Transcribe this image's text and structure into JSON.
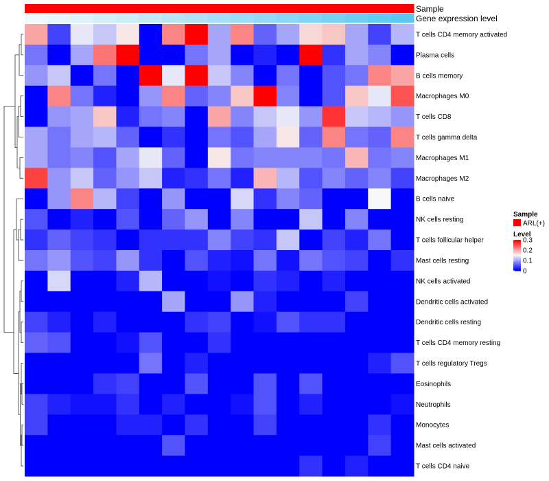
{
  "chart_data": {
    "type": "heatmap",
    "annotations": {
      "sample_label": "Sample",
      "expression_label": "Gene expression level",
      "sample_color": "#ff0000"
    },
    "rows": [
      "T cells CD4 memory activated",
      "Plasma cells",
      "B cells memory",
      "Macrophages M0",
      "T cells CD8",
      "T cells gamma delta",
      "Macrophages M1",
      "Macrophages M2",
      "B cells naive",
      "NK cells resting",
      "T cells follicular helper",
      "Mast cells resting",
      "NK cells activated",
      "Dendritic cells activated",
      "Dendritic cells resting",
      "T cells CD4 memory resting",
      "T cells regulatory  Tregs",
      "Eosinophils",
      "Neutrophils",
      "Monocytes",
      "Mast cells activated",
      "T cells CD4 naive"
    ],
    "values": [
      [
        0.2,
        0.04,
        0.14,
        0.12,
        0.16,
        0.0,
        0.22,
        0.3,
        0.1,
        0.22,
        0.06,
        0.1,
        0.17,
        0.18,
        0.1,
        0.04,
        0.11
      ],
      [
        0.07,
        0.0,
        0.1,
        0.23,
        0.3,
        0.0,
        0.0,
        0.07,
        0.1,
        0.0,
        0.02,
        0.0,
        0.3,
        0.03,
        0.1,
        0.08,
        0.0
      ],
      [
        0.09,
        0.12,
        0.0,
        0.07,
        0.0,
        0.3,
        0.14,
        0.3,
        0.12,
        0.08,
        0.0,
        0.07,
        0.0,
        0.05,
        0.07,
        0.22,
        0.2
      ],
      [
        0.0,
        0.22,
        0.07,
        0.02,
        0.0,
        0.09,
        0.22,
        0.06,
        0.08,
        0.18,
        0.3,
        0.08,
        0.0,
        0.05,
        0.18,
        0.14,
        0.25
      ],
      [
        0.0,
        0.09,
        0.1,
        0.18,
        0.02,
        0.07,
        0.08,
        0.0,
        0.2,
        0.08,
        0.12,
        0.14,
        0.09,
        0.27,
        0.12,
        0.11,
        0.09
      ],
      [
        0.1,
        0.07,
        0.1,
        0.11,
        0.06,
        0.0,
        0.03,
        0.0,
        0.07,
        0.05,
        0.1,
        0.16,
        0.06,
        0.22,
        0.07,
        0.06,
        0.22
      ],
      [
        0.1,
        0.07,
        0.08,
        0.05,
        0.1,
        0.14,
        0.06,
        0.0,
        0.16,
        0.07,
        0.08,
        0.08,
        0.08,
        0.07,
        0.19,
        0.07,
        0.08
      ],
      [
        0.26,
        0.09,
        0.12,
        0.06,
        0.09,
        0.12,
        0.02,
        0.03,
        0.07,
        0.02,
        0.19,
        0.11,
        0.05,
        0.08,
        0.06,
        0.08,
        0.04
      ],
      [
        0.0,
        0.09,
        0.22,
        0.11,
        0.04,
        0.0,
        0.09,
        0.0,
        0.0,
        0.13,
        0.03,
        0.08,
        0.06,
        0.0,
        0.0,
        0.15,
        0.0
      ],
      [
        0.05,
        0.0,
        0.02,
        0.0,
        0.05,
        0.0,
        0.06,
        0.09,
        0.0,
        0.08,
        0.0,
        0.0,
        0.12,
        0.0,
        0.08,
        0.0,
        0.0
      ],
      [
        0.03,
        0.06,
        0.04,
        0.03,
        0.0,
        0.03,
        0.03,
        0.03,
        0.08,
        0.04,
        0.03,
        0.12,
        0.0,
        0.04,
        0.02,
        0.07,
        0.0
      ],
      [
        0.07,
        0.09,
        0.05,
        0.04,
        0.09,
        0.03,
        0.0,
        0.05,
        0.02,
        0.01,
        0.07,
        0.01,
        0.07,
        0.05,
        0.04,
        0.0,
        0.03
      ],
      [
        0.0,
        0.13,
        0.0,
        0.0,
        0.02,
        0.11,
        0.0,
        0.0,
        0.01,
        0.0,
        0.03,
        0.02,
        0.0,
        0.02,
        0.0,
        0.0,
        0.0
      ],
      [
        0.0,
        0.0,
        0.0,
        0.0,
        0.0,
        0.0,
        0.1,
        0.0,
        0.0,
        0.09,
        0.02,
        0.0,
        0.0,
        0.0,
        0.04,
        0.0,
        0.0
      ],
      [
        0.04,
        0.02,
        0.0,
        0.02,
        0.0,
        0.0,
        0.0,
        0.03,
        0.04,
        0.0,
        0.01,
        0.05,
        0.03,
        0.03,
        0.0,
        0.0,
        0.0
      ],
      [
        0.06,
        0.05,
        0.0,
        0.0,
        0.01,
        0.05,
        0.0,
        0.0,
        0.03,
        0.0,
        0.0,
        0.0,
        0.0,
        0.0,
        0.0,
        0.0,
        0.0
      ],
      [
        0.0,
        0.0,
        0.0,
        0.0,
        0.0,
        0.07,
        0.0,
        0.02,
        0.0,
        0.0,
        0.0,
        0.0,
        0.0,
        0.0,
        0.0,
        0.02,
        0.05
      ],
      [
        0.0,
        0.0,
        0.0,
        0.03,
        0.04,
        0.0,
        0.0,
        0.05,
        0.0,
        0.0,
        0.05,
        0.0,
        0.05,
        0.0,
        0.0,
        0.0,
        0.0
      ],
      [
        0.04,
        0.02,
        0.01,
        0.01,
        0.03,
        0.0,
        0.02,
        0.0,
        0.0,
        0.01,
        0.05,
        0.0,
        0.02,
        0.0,
        0.0,
        0.0,
        0.01
      ],
      [
        0.04,
        0.0,
        0.0,
        0.0,
        0.02,
        0.02,
        0.0,
        0.03,
        0.0,
        0.0,
        0.04,
        0.0,
        0.0,
        0.0,
        0.0,
        0.03,
        0.0
      ],
      [
        0.0,
        0.0,
        0.0,
        0.0,
        0.0,
        0.0,
        0.05,
        0.0,
        0.0,
        0.0,
        0.0,
        0.0,
        0.0,
        0.0,
        0.0,
        0.04,
        0.0
      ],
      [
        0.0,
        0.0,
        0.0,
        0.0,
        0.0,
        0.0,
        0.0,
        0.0,
        0.0,
        0.0,
        0.0,
        0.0,
        0.03,
        0.0,
        0.02,
        0.0,
        0.0
      ]
    ],
    "expression_gradient": [
      0.0,
      0.02,
      0.04,
      0.06,
      0.08,
      0.1,
      0.12,
      0.14,
      0.16,
      0.18,
      0.2,
      0.22,
      0.24,
      0.26,
      0.28,
      0.3,
      0.32
    ],
    "color_scale": {
      "min": 0.0,
      "mid": 0.15,
      "max": 0.3,
      "low_color": "#0000ff",
      "mid_color": "#f8f8f8",
      "high_color": "#ff0000"
    },
    "legend": {
      "sample_title": "Sample",
      "sample_entry": "ARL(+)",
      "level_title": "Level",
      "ticks": [
        {
          "value": 0.3,
          "label": "0.3"
        },
        {
          "value": 0.2,
          "label": "0.2"
        },
        {
          "value": 0.1,
          "label": "0.1"
        },
        {
          "value": 0.0,
          "label": "0"
        }
      ]
    }
  }
}
